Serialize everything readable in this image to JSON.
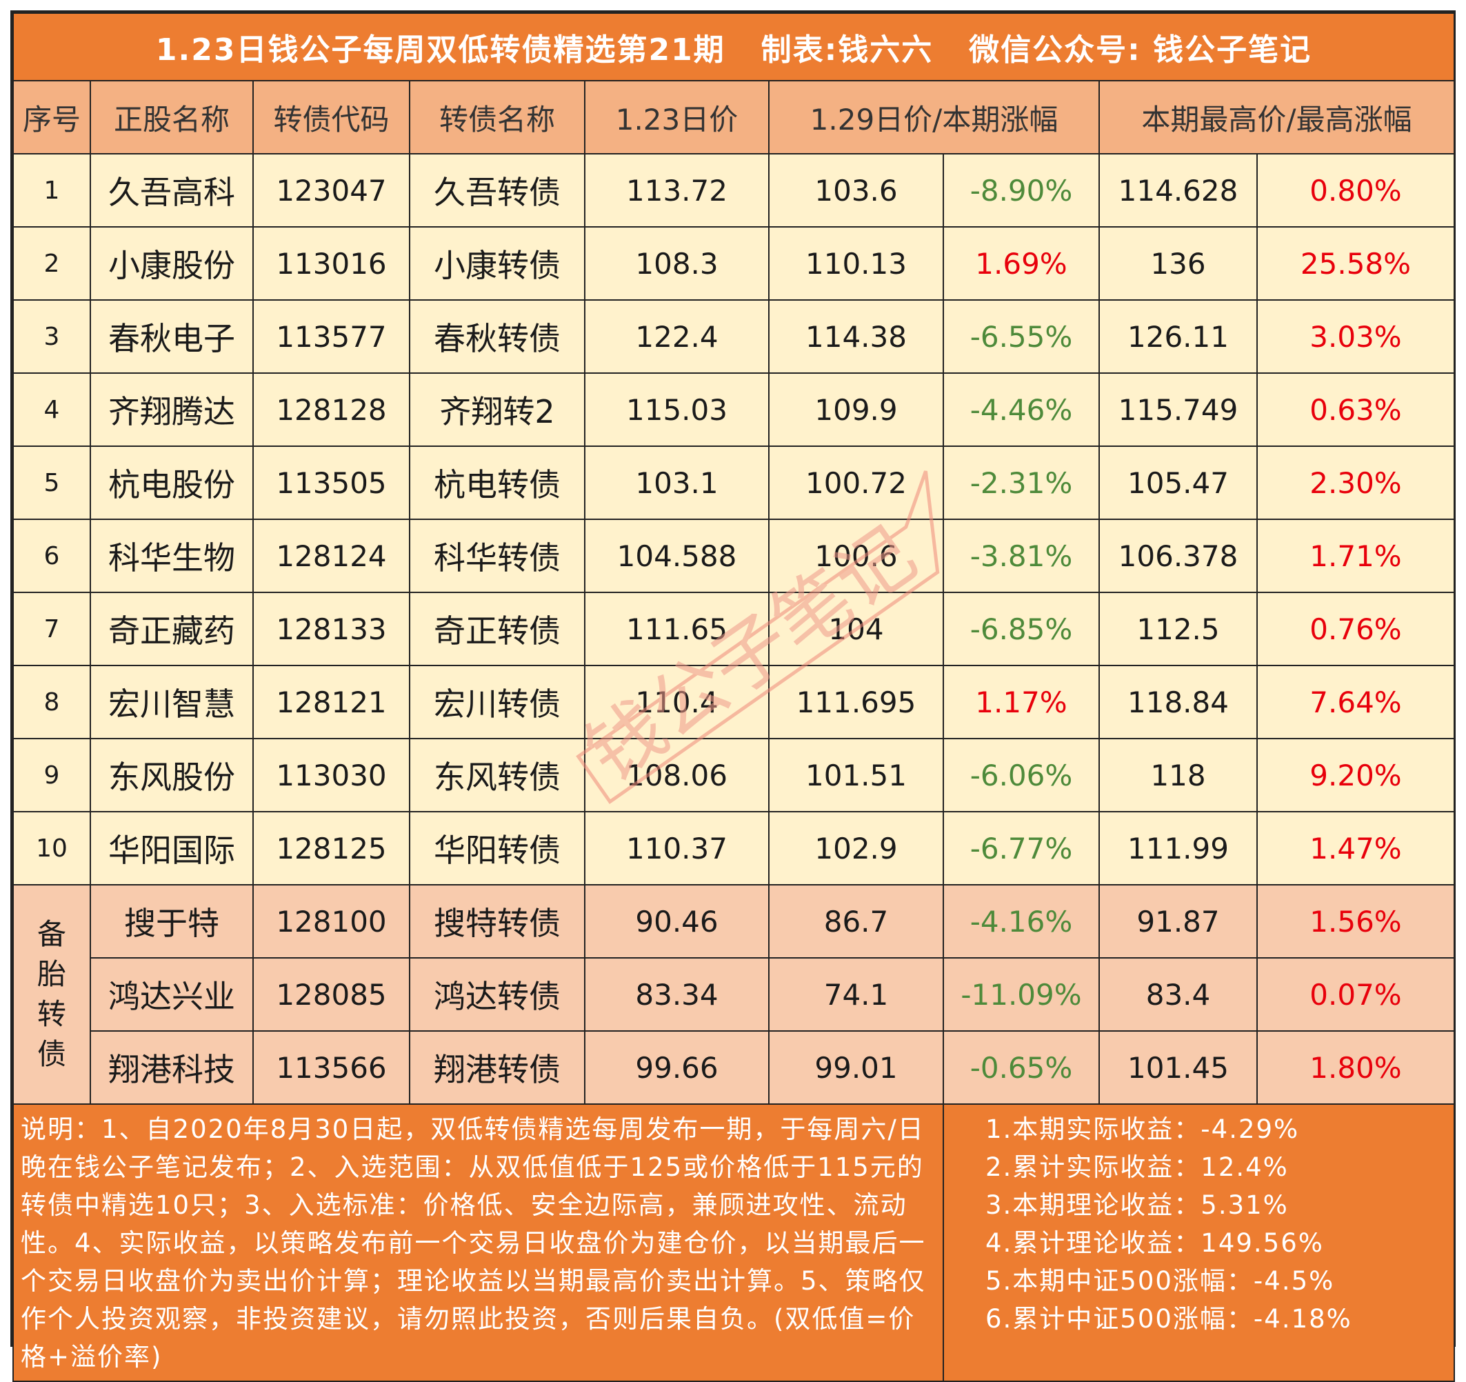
{
  "title": "1.23日钱公子每周双低转债精选第21期   制表:钱六六   微信公众号: 钱公子笔记",
  "headers": {
    "index": "序号",
    "stock_name": "正股名称",
    "bond_code": "转债代码",
    "bond_name": "转债名称",
    "price_start": "1.23日价",
    "price_end_change": "1.29日价/本期涨幅",
    "high_max_change": "本期最高价/最高涨幅"
  },
  "rows": [
    {
      "idx": "1",
      "stock": "久吾高科",
      "code": "123047",
      "bond": "久吾转债",
      "p1": "113.72",
      "p2": "103.6",
      "chg": "-8.90%",
      "high": "114.628",
      "hchg": "0.80%"
    },
    {
      "idx": "2",
      "stock": "小康股份",
      "code": "113016",
      "bond": "小康转债",
      "p1": "108.3",
      "p2": "110.13",
      "chg": "1.69%",
      "high": "136",
      "hchg": "25.58%"
    },
    {
      "idx": "3",
      "stock": "春秋电子",
      "code": "113577",
      "bond": "春秋转债",
      "p1": "122.4",
      "p2": "114.38",
      "chg": "-6.55%",
      "high": "126.11",
      "hchg": "3.03%"
    },
    {
      "idx": "4",
      "stock": "齐翔腾达",
      "code": "128128",
      "bond": "齐翔转2",
      "p1": "115.03",
      "p2": "109.9",
      "chg": "-4.46%",
      "high": "115.749",
      "hchg": "0.63%"
    },
    {
      "idx": "5",
      "stock": "杭电股份",
      "code": "113505",
      "bond": "杭电转债",
      "p1": "103.1",
      "p2": "100.72",
      "chg": "-2.31%",
      "high": "105.47",
      "hchg": "2.30%"
    },
    {
      "idx": "6",
      "stock": "科华生物",
      "code": "128124",
      "bond": "科华转债",
      "p1": "104.588",
      "p2": "100.6",
      "chg": "-3.81%",
      "high": "106.378",
      "hchg": "1.71%"
    },
    {
      "idx": "7",
      "stock": "奇正藏药",
      "code": "128133",
      "bond": "奇正转债",
      "p1": "111.65",
      "p2": "104",
      "chg": "-6.85%",
      "high": "112.5",
      "hchg": "0.76%"
    },
    {
      "idx": "8",
      "stock": "宏川智慧",
      "code": "128121",
      "bond": "宏川转债",
      "p1": "110.4",
      "p2": "111.695",
      "chg": "1.17%",
      "high": "118.84",
      "hchg": "7.64%"
    },
    {
      "idx": "9",
      "stock": "东风股份",
      "code": "113030",
      "bond": "东风转债",
      "p1": "108.06",
      "p2": "101.51",
      "chg": "-6.06%",
      "high": "118",
      "hchg": "9.20%"
    },
    {
      "idx": "10",
      "stock": "华阳国际",
      "code": "128125",
      "bond": "华阳转债",
      "p1": "110.37",
      "p2": "102.9",
      "chg": "-6.77%",
      "high": "111.99",
      "hchg": "1.47%"
    }
  ],
  "spare_label": "备胎转债",
  "spare_rows": [
    {
      "stock": "搜于特",
      "code": "128100",
      "bond": "搜特转债",
      "p1": "90.46",
      "p2": "86.7",
      "chg": "-4.16%",
      "high": "91.87",
      "hchg": "1.56%"
    },
    {
      "stock": "鸿达兴业",
      "code": "128085",
      "bond": "鸿达转债",
      "p1": "83.34",
      "p2": "74.1",
      "chg": "-11.09%",
      "high": "83.4",
      "hchg": "0.07%"
    },
    {
      "stock": "翔港科技",
      "code": "113566",
      "bond": "翔港转债",
      "p1": "99.66",
      "p2": "99.01",
      "chg": "-0.65%",
      "high": "101.45",
      "hchg": "1.80%"
    }
  ],
  "notes": "说明：1、自2020年8月30日起，双低转债精选每周发布一期，于每周六/日晚在钱公子笔记发布；2、入选范围：从双低值低于125或价格低于115元的转债中精选10只；3、入选标准：价格低、安全边际高，兼顾进攻性、流动性。4、实际收益，以策略发布前一个交易日收盘价为建仓价，以当期最后一个交易日收盘价为卖出价计算；理论收益以当期最高价卖出计算。5、策略仅作个人投资观察，非投资建议，请勿照此投资，否则后果自负。(双低值=价格+溢价率)",
  "summary": [
    "1.本期实际收益：-4.29%",
    "2.累计实际收益：12.4%",
    "3.本期理论收益：5.31%",
    "4.累计理论收益：149.56%",
    "5.本期中证500涨幅：-4.5%",
    "6.累计中证500涨幅：-4.18%"
  ],
  "watermark_text": "钱公子笔记",
  "colors": {
    "title_bg": "#ed7d31",
    "header_bg": "#f4b183",
    "row_bg": "#fff2cc",
    "spare_bg": "#f8cbad",
    "negative": "#4e8a3a",
    "positive": "#e8000b"
  }
}
